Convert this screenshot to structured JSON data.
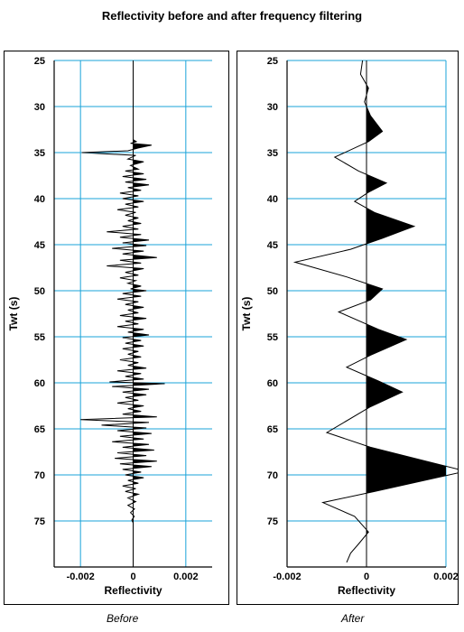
{
  "title": "Reflectivity before and after frequency filtering",
  "chart_data": [
    {
      "type": "line",
      "caption": "Before",
      "xlabel": "Reflectivity",
      "ylabel": "Twt (s)",
      "xlim": [
        -0.003,
        0.003
      ],
      "ylim": [
        25,
        80
      ],
      "y_inverted": true,
      "xticks": [
        -0.002,
        0,
        0.002
      ],
      "xtick_labels": [
        "-0.002",
        "0",
        "0.002"
      ],
      "yticks": [
        25,
        30,
        35,
        40,
        45,
        50,
        55,
        60,
        65,
        70,
        75
      ],
      "ytick_labels": [
        "25",
        "30",
        "35",
        "40",
        "45",
        "50",
        "55",
        "60",
        "65",
        "70",
        "75"
      ],
      "grid": true,
      "fill_positive": true,
      "series": [
        {
          "values": [
            [
              0,
              25
            ],
            [
              0,
              33.6
            ],
            [
              0.00012,
              33.8
            ],
            [
              -0.0001,
              34.0
            ],
            [
              0.0007,
              34.2
            ],
            [
              0.0002,
              34.5
            ],
            [
              -0.0002,
              34.8
            ],
            [
              -0.00195,
              35.0
            ],
            [
              0.0001,
              35.3
            ],
            [
              -0.0002,
              35.7
            ],
            [
              0.0004,
              36.0
            ],
            [
              -0.0001,
              36.4
            ],
            [
              0.0002,
              36.8
            ],
            [
              -0.0003,
              37.0
            ],
            [
              0.0004,
              37.3
            ],
            [
              -0.0004,
              37.6
            ],
            [
              0.0005,
              37.9
            ],
            [
              -0.0003,
              38.2
            ],
            [
              0.0006,
              38.5
            ],
            [
              -0.0002,
              38.8
            ],
            [
              0.0003,
              39.1
            ],
            [
              -0.0005,
              39.4
            ],
            [
              0.0002,
              39.7
            ],
            [
              -0.0004,
              40.0
            ],
            [
              0.0004,
              40.3
            ],
            [
              -0.0003,
              40.6
            ],
            [
              0.0002,
              40.9
            ],
            [
              -0.0006,
              41.2
            ],
            [
              0.0001,
              41.5
            ],
            [
              -0.0003,
              41.8
            ],
            [
              0.0002,
              42.1
            ],
            [
              -0.0002,
              42.4
            ],
            [
              0.0003,
              42.7
            ],
            [
              -0.0004,
              43.0
            ],
            [
              0.0002,
              43.3
            ],
            [
              -0.001,
              43.6
            ],
            [
              0.0003,
              43.9
            ],
            [
              -0.0005,
              44.2
            ],
            [
              0.0006,
              44.5
            ],
            [
              -0.0004,
              44.8
            ],
            [
              0.0005,
              45.1
            ],
            [
              -0.0008,
              45.4
            ],
            [
              0.0004,
              45.7
            ],
            [
              -0.0004,
              46.0
            ],
            [
              0.0009,
              46.4
            ],
            [
              -0.0005,
              46.7
            ],
            [
              0.0003,
              47.0
            ],
            [
              -0.001,
              47.3
            ],
            [
              0.0004,
              47.6
            ],
            [
              -0.0003,
              48.0
            ],
            [
              0.0002,
              48.3
            ],
            [
              -0.0005,
              48.6
            ],
            [
              0.0001,
              48.9
            ],
            [
              -0.0002,
              49.2
            ],
            [
              0.0003,
              49.5
            ],
            [
              -0.0001,
              49.8
            ],
            [
              0.0005,
              50.0
            ],
            [
              -0.0004,
              50.3
            ],
            [
              0.0003,
              50.6
            ],
            [
              -0.0006,
              50.9
            ],
            [
              0.0002,
              51.2
            ],
            [
              -0.0003,
              51.5
            ],
            [
              0.0004,
              51.8
            ],
            [
              -0.0002,
              52.1
            ],
            [
              0.0002,
              52.4
            ],
            [
              -0.0005,
              52.7
            ],
            [
              0.0005,
              53.0
            ],
            [
              -0.0003,
              53.3
            ],
            [
              0.0002,
              53.6
            ],
            [
              -0.0006,
              53.9
            ],
            [
              0.0004,
              54.2
            ],
            [
              -0.0002,
              54.5
            ],
            [
              0.0006,
              54.8
            ],
            [
              -0.0004,
              55.1
            ],
            [
              0.0003,
              55.4
            ],
            [
              -0.0003,
              55.7
            ],
            [
              0.0004,
              56.0
            ],
            [
              -0.0004,
              56.3
            ],
            [
              0.0002,
              56.6
            ],
            [
              -0.0002,
              56.9
            ],
            [
              0.0003,
              57.2
            ],
            [
              -0.0005,
              57.5
            ],
            [
              0.0002,
              57.8
            ],
            [
              -0.0002,
              58.1
            ],
            [
              0.0005,
              58.4
            ],
            [
              -0.0006,
              58.7
            ],
            [
              0.0003,
              59.0
            ],
            [
              -0.0003,
              59.3
            ],
            [
              0.0004,
              59.6
            ],
            [
              -0.0009,
              59.9
            ],
            [
              0.0012,
              60.1
            ],
            [
              -0.0008,
              60.4
            ],
            [
              0.0006,
              60.7
            ],
            [
              -0.0004,
              61.0
            ],
            [
              0.0005,
              61.3
            ],
            [
              -0.0003,
              61.6
            ],
            [
              0.0002,
              61.9
            ],
            [
              -0.0006,
              62.2
            ],
            [
              0.0004,
              62.5
            ],
            [
              -0.0002,
              62.8
            ],
            [
              0.0003,
              63.1
            ],
            [
              -0.0004,
              63.4
            ],
            [
              0.0009,
              63.7
            ],
            [
              -0.002,
              64.0
            ],
            [
              0.0006,
              64.3
            ],
            [
              -0.0012,
              64.6
            ],
            [
              0.0005,
              64.9
            ],
            [
              -0.0006,
              65.2
            ],
            [
              0.0007,
              65.5
            ],
            [
              -0.0005,
              65.8
            ],
            [
              0.0004,
              66.1
            ],
            [
              -0.0008,
              66.4
            ],
            [
              0.0006,
              66.7
            ],
            [
              -0.0004,
              67.0
            ],
            [
              0.0008,
              67.3
            ],
            [
              -0.0006,
              67.6
            ],
            [
              0.0005,
              67.9
            ],
            [
              -0.0007,
              68.2
            ],
            [
              0.0009,
              68.5
            ],
            [
              -0.0005,
              68.8
            ],
            [
              0.0007,
              69.1
            ],
            [
              -0.0004,
              69.4
            ],
            [
              0.0003,
              69.7
            ],
            [
              -0.0003,
              70.0
            ],
            [
              0.0004,
              70.3
            ],
            [
              -0.0002,
              70.6
            ],
            [
              0.0002,
              70.9
            ],
            [
              -0.0004,
              71.2
            ],
            [
              0.0001,
              71.5
            ],
            [
              -0.0003,
              71.8
            ],
            [
              0.0002,
              72.1
            ],
            [
              -0.0002,
              72.5
            ],
            [
              0.0001,
              72.9
            ],
            [
              -0.0002,
              73.3
            ],
            [
              5e-05,
              73.7
            ],
            [
              -0.0001,
              74.1
            ],
            [
              4e-05,
              74.5
            ],
            [
              -5e-05,
              74.9
            ],
            [
              0,
              75.2
            ],
            [
              0,
              75.3
            ]
          ]
        }
      ]
    },
    {
      "type": "line",
      "caption": "After",
      "xlabel": "Reflectivity",
      "ylabel": "Twt (s)",
      "xlim": [
        -0.002,
        0.002
      ],
      "ylim": [
        25,
        80
      ],
      "y_inverted": true,
      "xticks": [
        -0.002,
        0,
        0.002
      ],
      "xtick_labels": [
        "-0.002",
        "0",
        "0.002"
      ],
      "yticks": [
        25,
        30,
        35,
        40,
        45,
        50,
        55,
        60,
        65,
        70,
        75
      ],
      "ytick_labels": [
        "25",
        "30",
        "35",
        "40",
        "45",
        "50",
        "55",
        "60",
        "65",
        "70",
        "75"
      ],
      "grid": true,
      "fill_positive": true,
      "series": [
        {
          "values": [
            [
              -0.0001,
              25
            ],
            [
              -0.00015,
              26.5
            ],
            [
              5e-05,
              28
            ],
            [
              -5e-05,
              29.5
            ],
            [
              0.0001,
              31
            ],
            [
              0.0004,
              32.7
            ],
            [
              5e-05,
              33.8
            ],
            [
              -0.0008,
              35.5
            ],
            [
              -0.0002,
              37
            ],
            [
              0.0005,
              38.3
            ],
            [
              5e-05,
              39.3
            ],
            [
              -0.0003,
              40.3
            ],
            [
              0.0002,
              41.5
            ],
            [
              0.0012,
              43.0
            ],
            [
              0.0004,
              44.3
            ],
            [
              -0.0004,
              45.5
            ],
            [
              -0.0018,
              46.9
            ],
            [
              -0.0005,
              48.5
            ],
            [
              0.0004,
              49.8
            ],
            [
              0.0001,
              51.0
            ],
            [
              -0.0007,
              52.3
            ],
            [
              0.0003,
              54.2
            ],
            [
              0.001,
              55.3
            ],
            [
              0.0001,
              57.0
            ],
            [
              -0.0005,
              58.3
            ],
            [
              0.0003,
              59.8
            ],
            [
              0.0009,
              61.0
            ],
            [
              0.0001,
              62.6
            ],
            [
              -0.001,
              65.4
            ],
            [
              0.0001,
              67.0
            ],
            [
              0.0025,
              69.6
            ],
            [
              0.0002,
              71.8
            ],
            [
              -0.0011,
              73.0
            ],
            [
              -0.0003,
              74.5
            ],
            [
              5e-05,
              76.2
            ],
            [
              -0.0002,
              77.5
            ],
            [
              -0.0004,
              78.5
            ],
            [
              -0.0005,
              79.5
            ]
          ]
        }
      ]
    }
  ]
}
